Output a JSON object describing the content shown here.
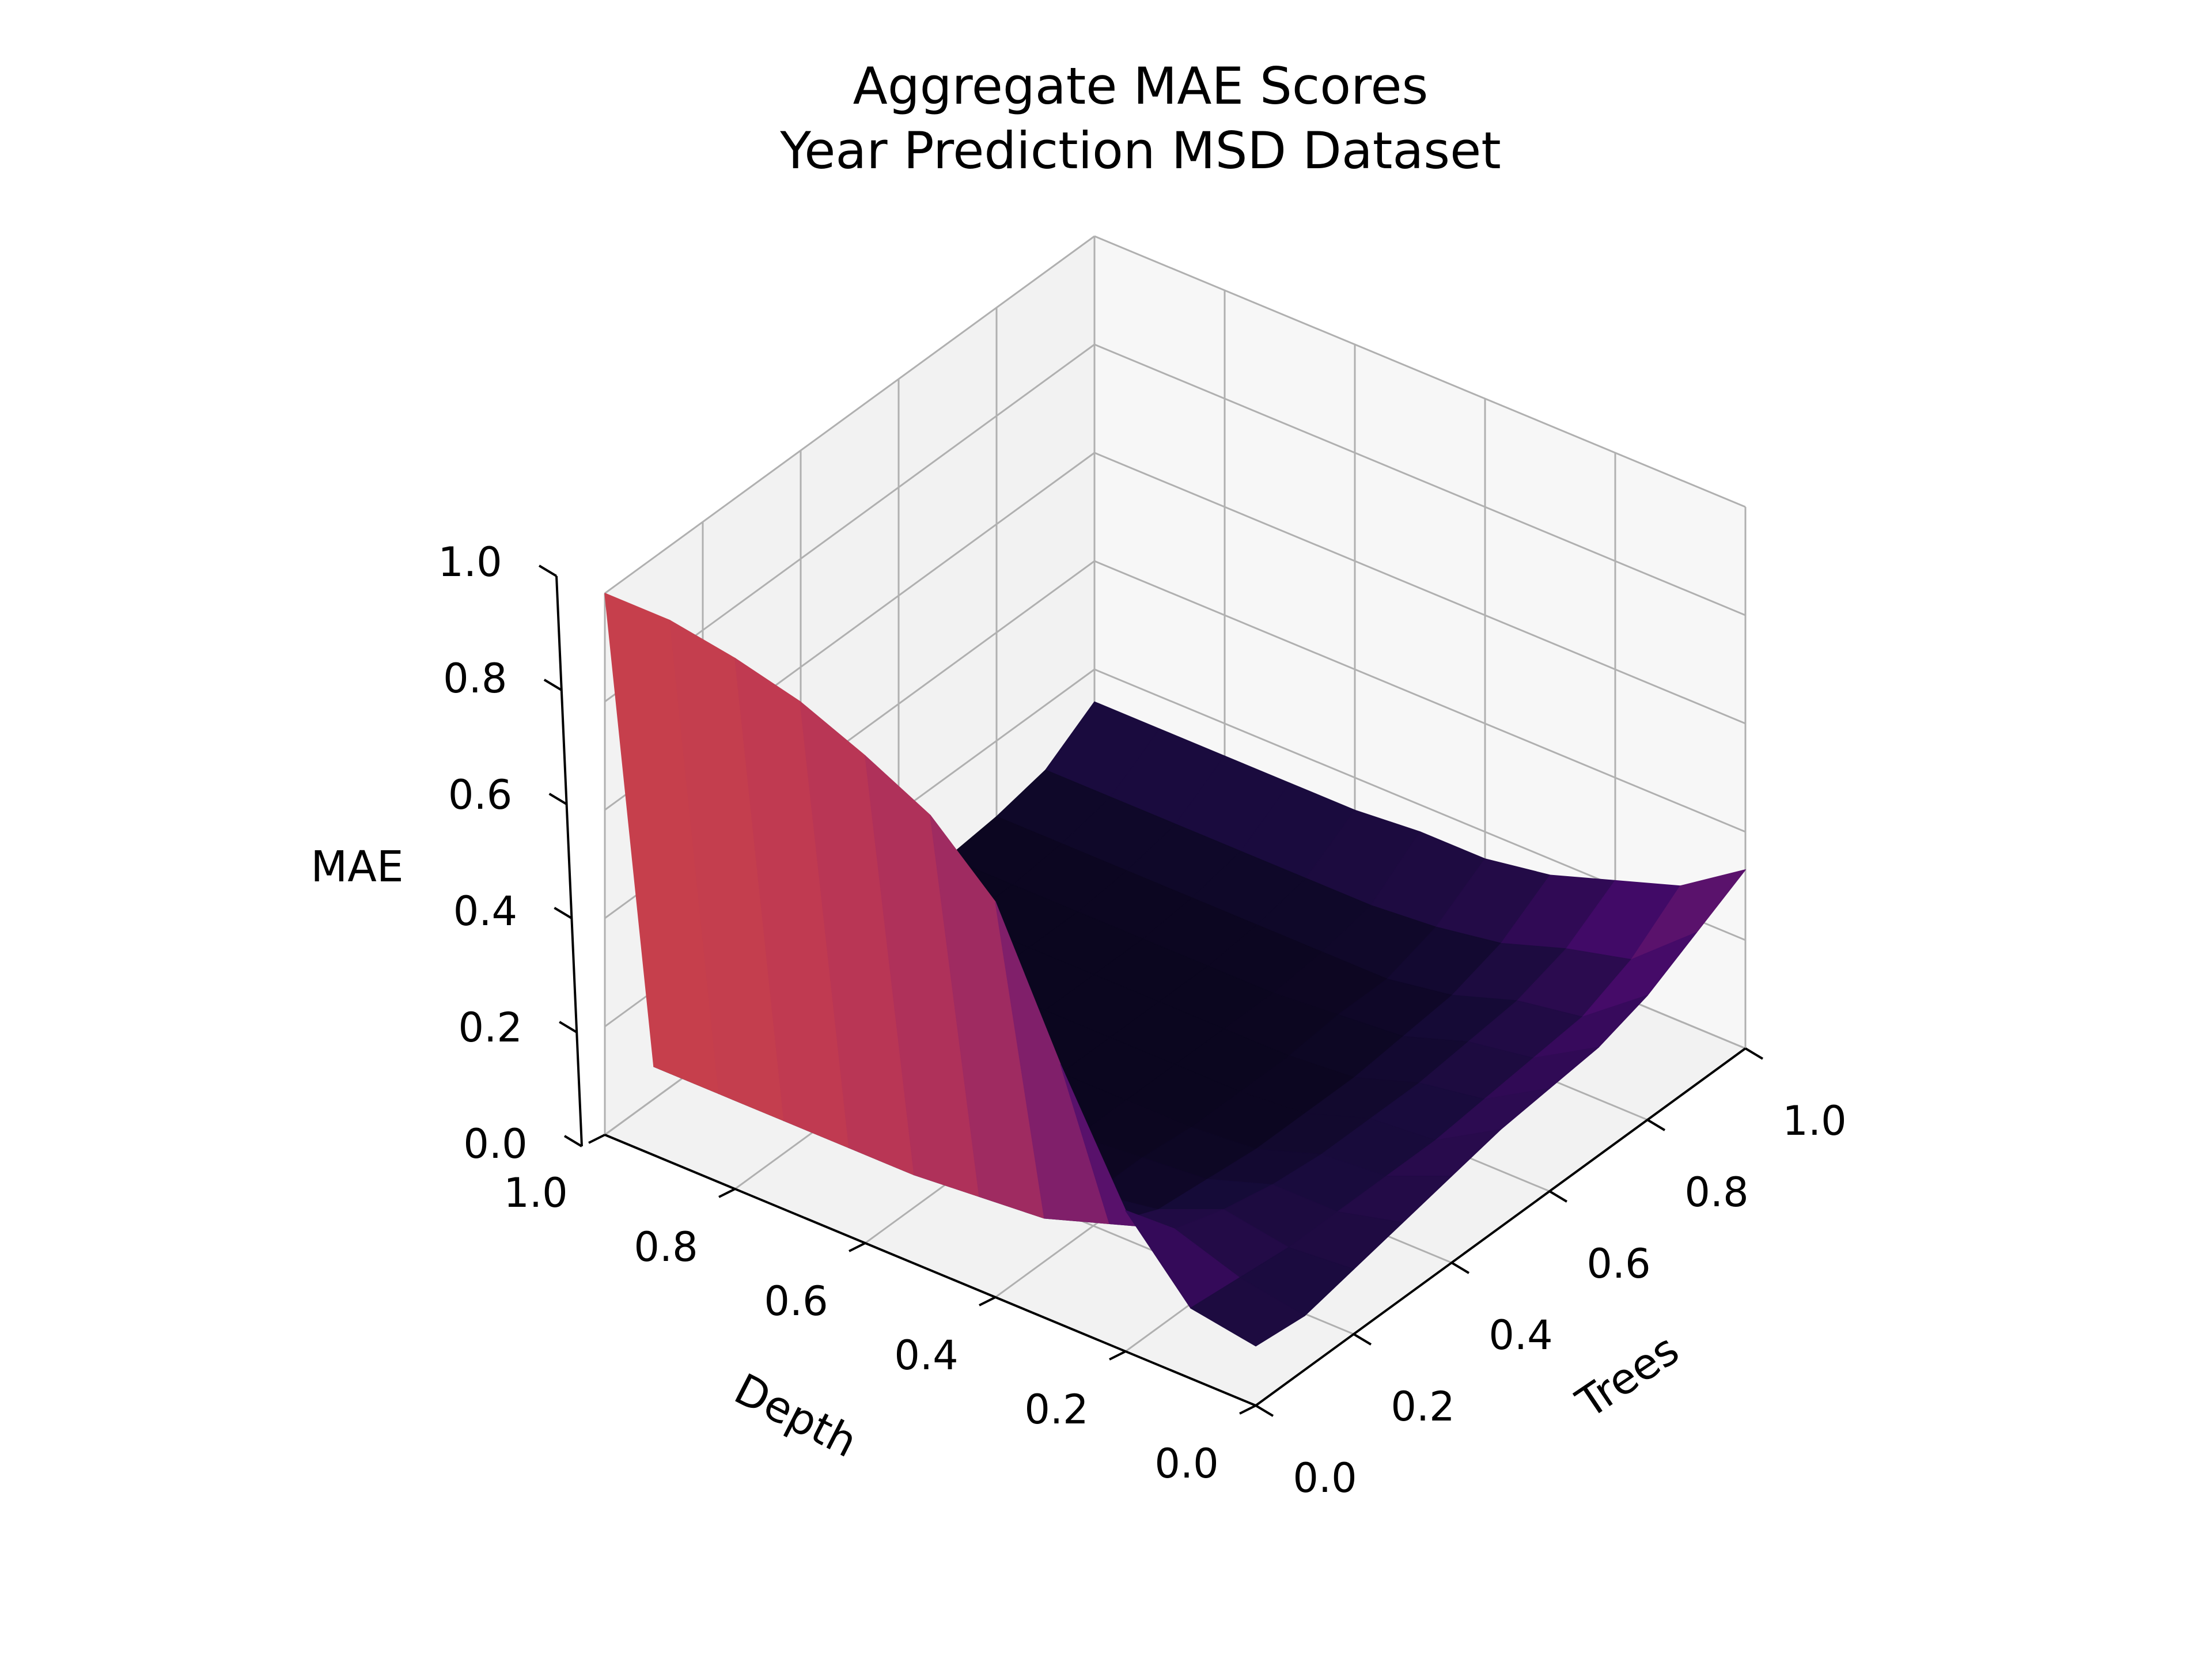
{
  "chart_data": {
    "type": "surface3d",
    "title": "Aggregate MAE Scores",
    "subtitle": "Year Prediction MSD Dataset",
    "xlabel": "Trees",
    "ylabel": "Depth",
    "zlabel": "MAE",
    "xlim": [
      0,
      1
    ],
    "ylim": [
      0,
      1
    ],
    "zlim": [
      0,
      1
    ],
    "x_ticks": [
      "0.0",
      "0.2",
      "0.4",
      "0.6",
      "0.8",
      "1.0"
    ],
    "y_ticks": [
      "0.0",
      "0.2",
      "0.4",
      "0.6",
      "0.8",
      "1.0"
    ],
    "z_ticks": [
      "0.0",
      "0.2",
      "0.4",
      "0.6",
      "0.8",
      "1.0"
    ],
    "colormap": "inferno",
    "view": {
      "elevation_deg": 30,
      "azimuth_deg": -135
    },
    "grid": true,
    "depth": [
      1.0,
      0.9,
      0.8,
      0.7,
      0.6,
      0.5,
      0.4,
      0.3,
      0.2,
      0.1,
      0.0
    ],
    "trees": [
      0.0,
      0.1,
      0.2,
      0.3,
      0.4,
      0.5,
      0.6,
      0.7,
      0.8,
      0.9,
      1.0
    ],
    "mae": [
      [
        1.0,
        0.06,
        0.06,
        0.05,
        0.05,
        0.05,
        0.05,
        0.05,
        0.06,
        0.08,
        0.14
      ],
      [
        1.0,
        0.06,
        0.06,
        0.05,
        0.05,
        0.05,
        0.05,
        0.05,
        0.06,
        0.08,
        0.14
      ],
      [
        0.98,
        0.06,
        0.05,
        0.05,
        0.05,
        0.05,
        0.05,
        0.05,
        0.06,
        0.08,
        0.14
      ],
      [
        0.95,
        0.06,
        0.05,
        0.05,
        0.05,
        0.05,
        0.05,
        0.05,
        0.06,
        0.08,
        0.14
      ],
      [
        0.9,
        0.06,
        0.05,
        0.05,
        0.05,
        0.05,
        0.05,
        0.05,
        0.06,
        0.08,
        0.14
      ],
      [
        0.84,
        0.07,
        0.06,
        0.05,
        0.05,
        0.05,
        0.05,
        0.05,
        0.06,
        0.08,
        0.15
      ],
      [
        0.73,
        0.08,
        0.06,
        0.06,
        0.05,
        0.05,
        0.05,
        0.06,
        0.06,
        0.09,
        0.15
      ],
      [
        0.48,
        0.12,
        0.08,
        0.07,
        0.06,
        0.06,
        0.06,
        0.07,
        0.08,
        0.11,
        0.17
      ],
      [
        0.26,
        0.16,
        0.13,
        0.11,
        0.1,
        0.1,
        0.1,
        0.11,
        0.12,
        0.15,
        0.21
      ],
      [
        0.13,
        0.12,
        0.11,
        0.11,
        0.11,
        0.11,
        0.12,
        0.13,
        0.14,
        0.18,
        0.25
      ],
      [
        0.11,
        0.1,
        0.12,
        0.14,
        0.16,
        0.18,
        0.19,
        0.2,
        0.23,
        0.28,
        0.33
      ]
    ]
  }
}
